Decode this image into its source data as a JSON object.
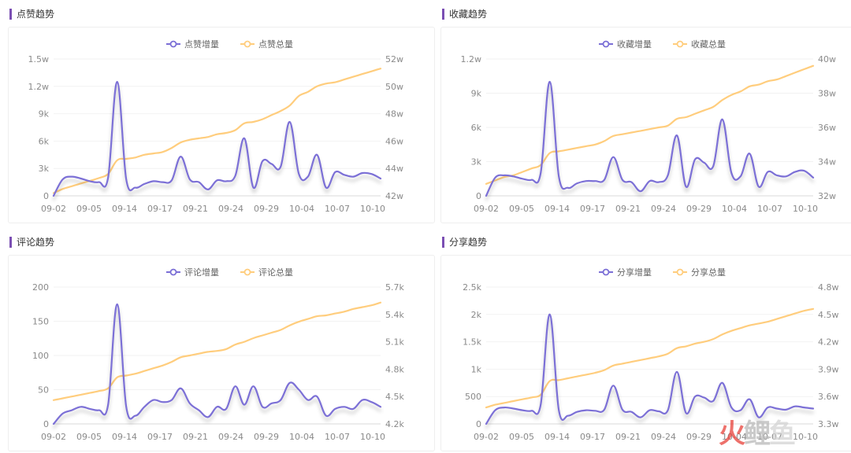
{
  "colors": {
    "increase": "#7b6fd6",
    "total": "#ffcd7d",
    "title_bar": "#7b4fb3"
  },
  "x_ticks": [
    "09-02",
    "09-05",
    "09-14",
    "09-17",
    "09-21",
    "09-24",
    "09-29",
    "10-04",
    "10-07",
    "10-10"
  ],
  "watermark": "火鲤鱼",
  "chart_data": [
    {
      "type": "line",
      "title": "点赞趋势",
      "legend": [
        "点赞增量",
        "点赞总量"
      ],
      "left_ticks": [
        "0",
        "3k",
        "6k",
        "9k",
        "1.2w",
        "1.5w"
      ],
      "right_ticks": [
        "42w",
        "44w",
        "46w",
        "48w",
        "50w",
        "52w"
      ],
      "ylim_left": [
        0,
        15000
      ],
      "ylim_right": [
        420000,
        520000
      ],
      "series": [
        {
          "name": "点赞增量",
          "axis": "left",
          "values": [
            0,
            1800,
            2100,
            1900,
            1600,
            1500,
            2000,
            12500,
            1800,
            900,
            1300,
            1600,
            1500,
            1700,
            4300,
            1800,
            1500,
            700,
            1700,
            1600,
            2200,
            6300,
            900,
            3800,
            3500,
            3200,
            8100,
            2400,
            2100,
            4500,
            900,
            2600,
            2300,
            2100,
            2500,
            2400,
            1900
          ]
        },
        {
          "name": "点赞总量",
          "axis": "right",
          "values": [
            422000,
            425000,
            427000,
            429000,
            431000,
            433000,
            436000,
            446000,
            447000,
            448000,
            450000,
            451000,
            452000,
            455000,
            459000,
            461000,
            462000,
            463000,
            465000,
            466000,
            468000,
            473000,
            474000,
            476000,
            479000,
            482000,
            486000,
            493000,
            496000,
            500000,
            502000,
            503000,
            505000,
            507000,
            509000,
            511000,
            513000
          ]
        }
      ]
    },
    {
      "type": "line",
      "title": "收藏趋势",
      "legend": [
        "收藏增量",
        "收藏总量"
      ],
      "left_ticks": [
        "0",
        "3k",
        "6k",
        "9k",
        "1.2w"
      ],
      "right_ticks": [
        "32w",
        "34w",
        "36w",
        "38w",
        "40w"
      ],
      "ylim_left": [
        0,
        12000
      ],
      "ylim_right": [
        320000,
        400000
      ],
      "series": [
        {
          "name": "收藏增量",
          "axis": "left",
          "values": [
            0,
            1600,
            1800,
            1700,
            1500,
            1400,
            2000,
            10000,
            1700,
            700,
            1100,
            1300,
            1300,
            1400,
            3400,
            1400,
            1200,
            400,
            1300,
            1200,
            1800,
            5300,
            800,
            3200,
            2900,
            2600,
            6700,
            2000,
            1700,
            3700,
            800,
            2100,
            1800,
            1700,
            2100,
            2200,
            1600
          ]
        },
        {
          "name": "收藏总量",
          "axis": "right",
          "values": [
            327000,
            329000,
            331000,
            332000,
            334000,
            336000,
            338000,
            345000,
            346000,
            347000,
            348000,
            349000,
            350000,
            352000,
            355000,
            356000,
            357000,
            358000,
            359000,
            360000,
            361000,
            365000,
            366000,
            368000,
            370000,
            372000,
            376000,
            379000,
            381000,
            384000,
            385000,
            387000,
            388000,
            390000,
            392000,
            394000,
            396000
          ]
        }
      ]
    },
    {
      "type": "line",
      "title": "评论趋势",
      "legend": [
        "评论增量",
        "评论总量"
      ],
      "left_ticks": [
        "0",
        "50",
        "100",
        "150",
        "200"
      ],
      "right_ticks": [
        "4.2k",
        "4.5k",
        "4.8k",
        "5.1k",
        "5.4k",
        "5.7k"
      ],
      "ylim_left": [
        0,
        200
      ],
      "ylim_right": [
        4200,
        5700
      ],
      "series": [
        {
          "name": "评论增量",
          "axis": "left",
          "values": [
            0,
            15,
            20,
            25,
            22,
            20,
            28,
            175,
            25,
            12,
            25,
            35,
            32,
            35,
            52,
            30,
            20,
            10,
            25,
            22,
            55,
            28,
            55,
            25,
            30,
            35,
            60,
            50,
            35,
            40,
            12,
            22,
            25,
            22,
            35,
            32,
            25
          ]
        },
        {
          "name": "评论总量",
          "axis": "right",
          "values": [
            4460,
            4480,
            4500,
            4520,
            4540,
            4560,
            4590,
            4710,
            4730,
            4750,
            4780,
            4810,
            4840,
            4880,
            4930,
            4950,
            4970,
            4990,
            5000,
            5020,
            5070,
            5100,
            5140,
            5170,
            5200,
            5230,
            5280,
            5320,
            5350,
            5380,
            5390,
            5410,
            5430,
            5460,
            5480,
            5500,
            5530
          ]
        }
      ]
    },
    {
      "type": "line",
      "title": "分享趋势",
      "legend": [
        "分享增量",
        "分享总量"
      ],
      "left_ticks": [
        "0",
        "500",
        "1k",
        "1.5k",
        "2k",
        "2.5k"
      ],
      "right_ticks": [
        "3.3w",
        "3.6w",
        "3.9w",
        "4.2w",
        "4.5w",
        "4.8w"
      ],
      "ylim_left": [
        0,
        2500
      ],
      "ylim_right": [
        33000,
        48000
      ],
      "series": [
        {
          "name": "分享增量",
          "axis": "left",
          "values": [
            0,
            250,
            300,
            280,
            250,
            240,
            350,
            2000,
            250,
            150,
            220,
            250,
            240,
            260,
            700,
            260,
            220,
            120,
            250,
            230,
            250,
            950,
            200,
            500,
            480,
            420,
            750,
            300,
            250,
            450,
            120,
            300,
            280,
            260,
            320,
            300,
            280
          ]
        },
        {
          "name": "分享总量",
          "axis": "right",
          "values": [
            34800,
            35100,
            35300,
            35500,
            35700,
            35900,
            36200,
            37700,
            37800,
            38000,
            38200,
            38400,
            38600,
            38900,
            39400,
            39600,
            39800,
            40000,
            40200,
            40400,
            40700,
            41300,
            41500,
            41800,
            42000,
            42300,
            42800,
            43200,
            43500,
            43800,
            44000,
            44200,
            44500,
            44800,
            45100,
            45400,
            45600
          ]
        }
      ]
    }
  ]
}
